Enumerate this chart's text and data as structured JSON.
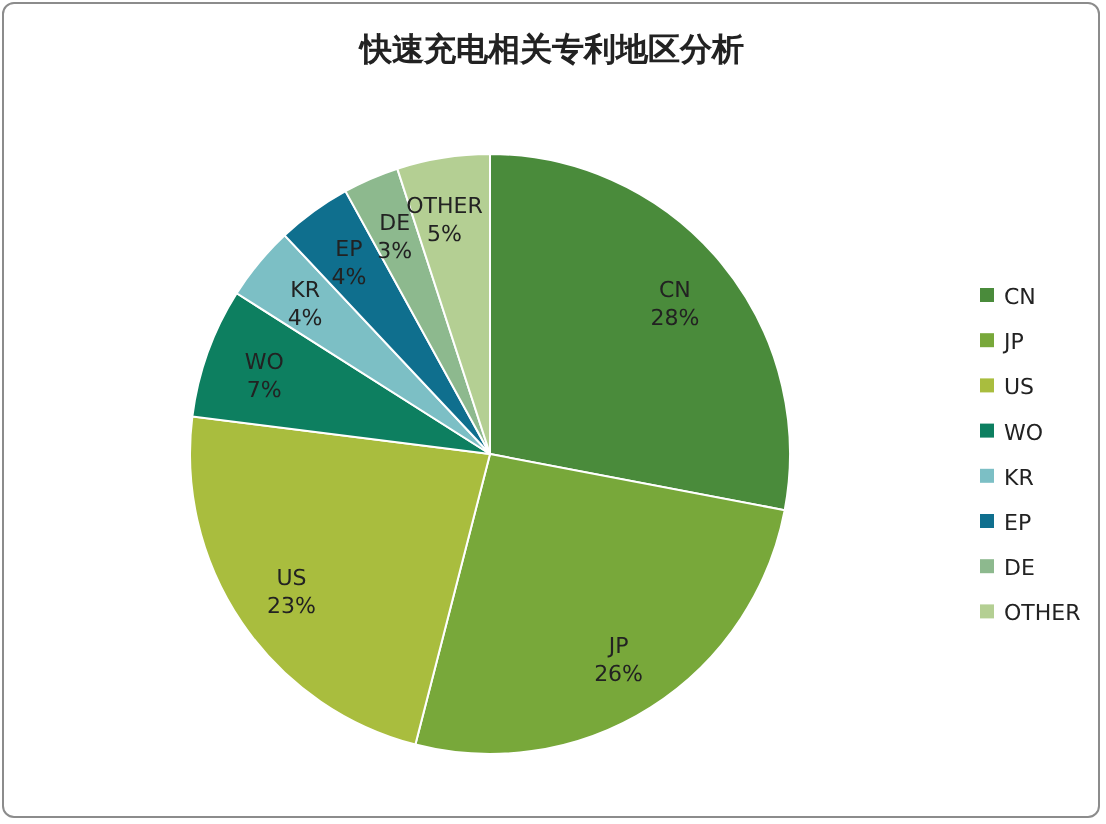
{
  "chart_data": {
    "type": "pie",
    "title": "快速充电相关专利地区分析",
    "categories": [
      "CN",
      "JP",
      "US",
      "WO",
      "KR",
      "EP",
      "DE",
      "OTHER"
    ],
    "values": [
      28,
      26,
      23,
      7,
      4,
      4,
      3,
      5
    ],
    "colors": [
      "#4a8b3b",
      "#78a83a",
      "#a9bd3e",
      "#0d7f60",
      "#7cbfc5",
      "#0f6f8e",
      "#8db98e",
      "#b4cf93"
    ],
    "value_labels": [
      "28%",
      "26%",
      "23%",
      "7%",
      "4%",
      "4%",
      "3%",
      "5%"
    ],
    "legend": "right"
  }
}
